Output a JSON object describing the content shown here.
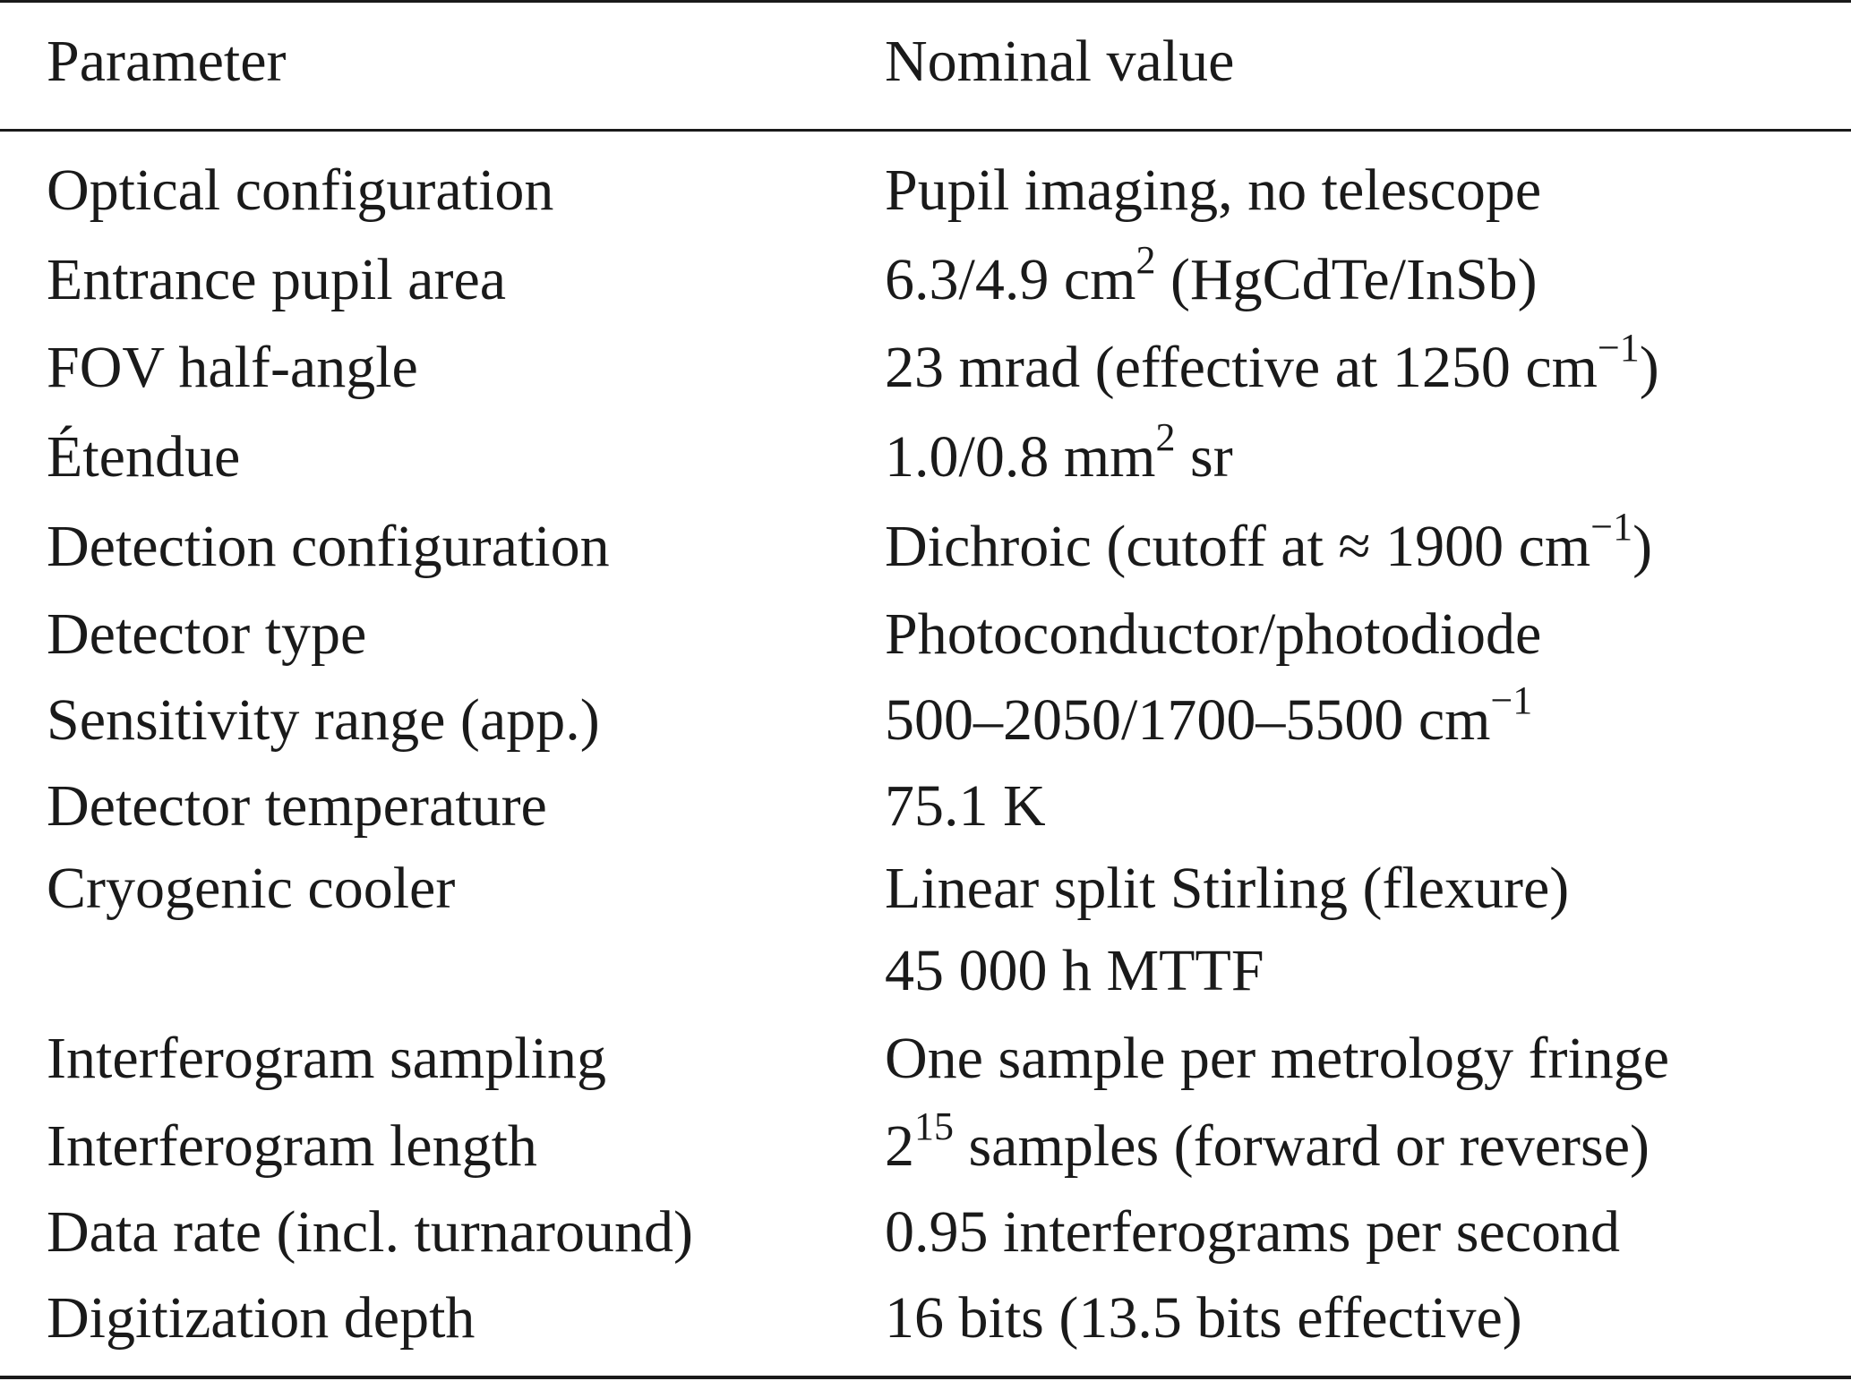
{
  "table": {
    "header": {
      "parameter": "Parameter",
      "value": "Nominal value"
    },
    "rows": [
      {
        "parameter": "Optical configuration",
        "value": "Pupil imaging, no telescope"
      },
      {
        "parameter": "Entrance pupil area",
        "value_pre": "6.3/4.9 cm",
        "value_sup": "2",
        "value_post": " (HgCdTe/InSb)"
      },
      {
        "parameter": "FOV half-angle",
        "value_pre": "23 mrad (effective at 1250 cm",
        "value_sup": "−1",
        "value_post": ")"
      },
      {
        "parameter": "Étendue",
        "value_pre": "1.0/0.8 mm",
        "value_sup": "2",
        "value_post": " sr"
      },
      {
        "parameter": "Detection configuration",
        "value_pre": "Dichroic (cutoff at ≈ 1900 cm",
        "value_sup": "−1",
        "value_post": ")"
      },
      {
        "parameter": "Detector type",
        "value": "Photoconductor/photodiode"
      },
      {
        "parameter": "Sensitivity range (app.)",
        "value_pre": "500–2050/1700–5500 cm",
        "value_sup": "−1",
        "value_post": ""
      },
      {
        "parameter": "Detector temperature",
        "value": "75.1 K"
      },
      {
        "parameter": "Cryogenic cooler",
        "value": "Linear split Stirling (flexure)"
      },
      {
        "parameter": "",
        "value": "45 000 h MTTF"
      },
      {
        "parameter": "Interferogram sampling",
        "value": "One sample per metrology fringe"
      },
      {
        "parameter": "Interferogram length",
        "value_pre": "2",
        "value_sup": "15",
        "value_post": " samples (forward or reverse)"
      },
      {
        "parameter": "Data rate (incl. turnaround)",
        "value": "0.95 interferograms per second"
      },
      {
        "parameter": "Digitization depth",
        "value": "16 bits (13.5 bits effective)"
      }
    ]
  }
}
